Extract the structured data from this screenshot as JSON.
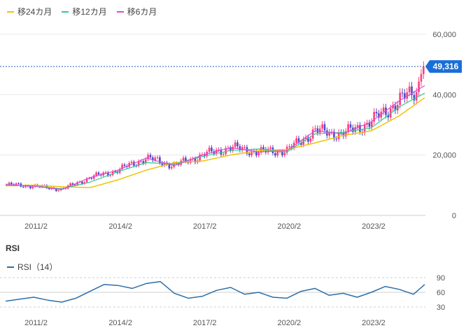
{
  "legend": {
    "ma24_label": "移24カ月",
    "ma12_label": "移12カ月",
    "ma6_label": "移6カ月"
  },
  "colors": {
    "ma24": "#f2c200",
    "ma12": "#2ecc8f",
    "ma6": "#d94bd9",
    "up": "#ff3d7f",
    "down": "#4b4bc8",
    "rsi": "#2d6fa8",
    "badge": "#1a6ed8"
  },
  "price_badge": "49,316",
  "rsi_title": "RSI",
  "rsi_legend_label": "RSI（14）",
  "chart_data": [
    {
      "type": "line",
      "title": "",
      "x_tick_labels": [
        "2011/2",
        "2014/2",
        "2017/2",
        "2020/2",
        "2023/2"
      ],
      "y_tick_labels": [
        "60,000",
        "40,000",
        "20,000",
        "0"
      ],
      "ylim": [
        0,
        60000
      ],
      "last_price": 49316,
      "series": [
        {
          "name": "移24カ月",
          "x": [
            2010.0,
            2011.0,
            2012.0,
            2013.0,
            2014.0,
            2015.0,
            2016.0,
            2017.0,
            2018.0,
            2019.0,
            2020.0,
            2021.0,
            2022.0,
            2023.0,
            2024.0,
            2024.9
          ],
          "values": [
            9800,
            10000,
            9500,
            9200,
            11800,
            15000,
            17500,
            18000,
            20000,
            21500,
            21800,
            24000,
            26500,
            28000,
            33000,
            39000
          ]
        },
        {
          "name": "移12カ月",
          "x": [
            2010.0,
            2011.0,
            2012.0,
            2013.0,
            2014.0,
            2015.0,
            2016.0,
            2017.0,
            2018.0,
            2019.0,
            2020.0,
            2021.0,
            2022.0,
            2023.0,
            2024.0,
            2024.9
          ],
          "values": [
            10000,
            9800,
            8800,
            11000,
            14500,
            17500,
            17000,
            19500,
            21500,
            22000,
            21000,
            27000,
            27500,
            29000,
            36000,
            40500
          ]
        },
        {
          "name": "移6カ月",
          "x": [
            2010.0,
            2011.0,
            2012.0,
            2013.0,
            2014.0,
            2015.0,
            2016.0,
            2017.0,
            2018.0,
            2019.0,
            2020.0,
            2021.0,
            2022.0,
            2023.0,
            2024.0,
            2024.9
          ],
          "values": [
            10200,
            9700,
            8600,
            12500,
            15000,
            19000,
            16500,
            20000,
            22500,
            21000,
            21500,
            28000,
            27000,
            31000,
            38000,
            43000
          ]
        }
      ]
    },
    {
      "type": "line",
      "title": "RSI",
      "x_tick_labels": [
        "2011/2",
        "2014/2",
        "2017/2",
        "2020/2",
        "2023/2"
      ],
      "y_tick_labels": [
        "90",
        "60",
        "30"
      ],
      "ylim": [
        30,
        90
      ],
      "series": [
        {
          "name": "RSI（14）",
          "x": [
            2010.0,
            2010.5,
            2011.0,
            2011.5,
            2012.0,
            2012.5,
            2013.0,
            2013.5,
            2014.0,
            2014.5,
            2015.0,
            2015.5,
            2016.0,
            2016.5,
            2017.0,
            2017.5,
            2018.0,
            2018.5,
            2019.0,
            2019.5,
            2020.0,
            2020.5,
            2021.0,
            2021.5,
            2022.0,
            2022.5,
            2023.0,
            2023.5,
            2024.0,
            2024.5,
            2024.9
          ],
          "values": [
            42,
            46,
            50,
            44,
            40,
            48,
            62,
            76,
            74,
            68,
            78,
            82,
            58,
            48,
            52,
            64,
            70,
            56,
            60,
            50,
            48,
            62,
            68,
            54,
            58,
            50,
            60,
            72,
            66,
            56,
            76
          ]
        }
      ]
    }
  ]
}
